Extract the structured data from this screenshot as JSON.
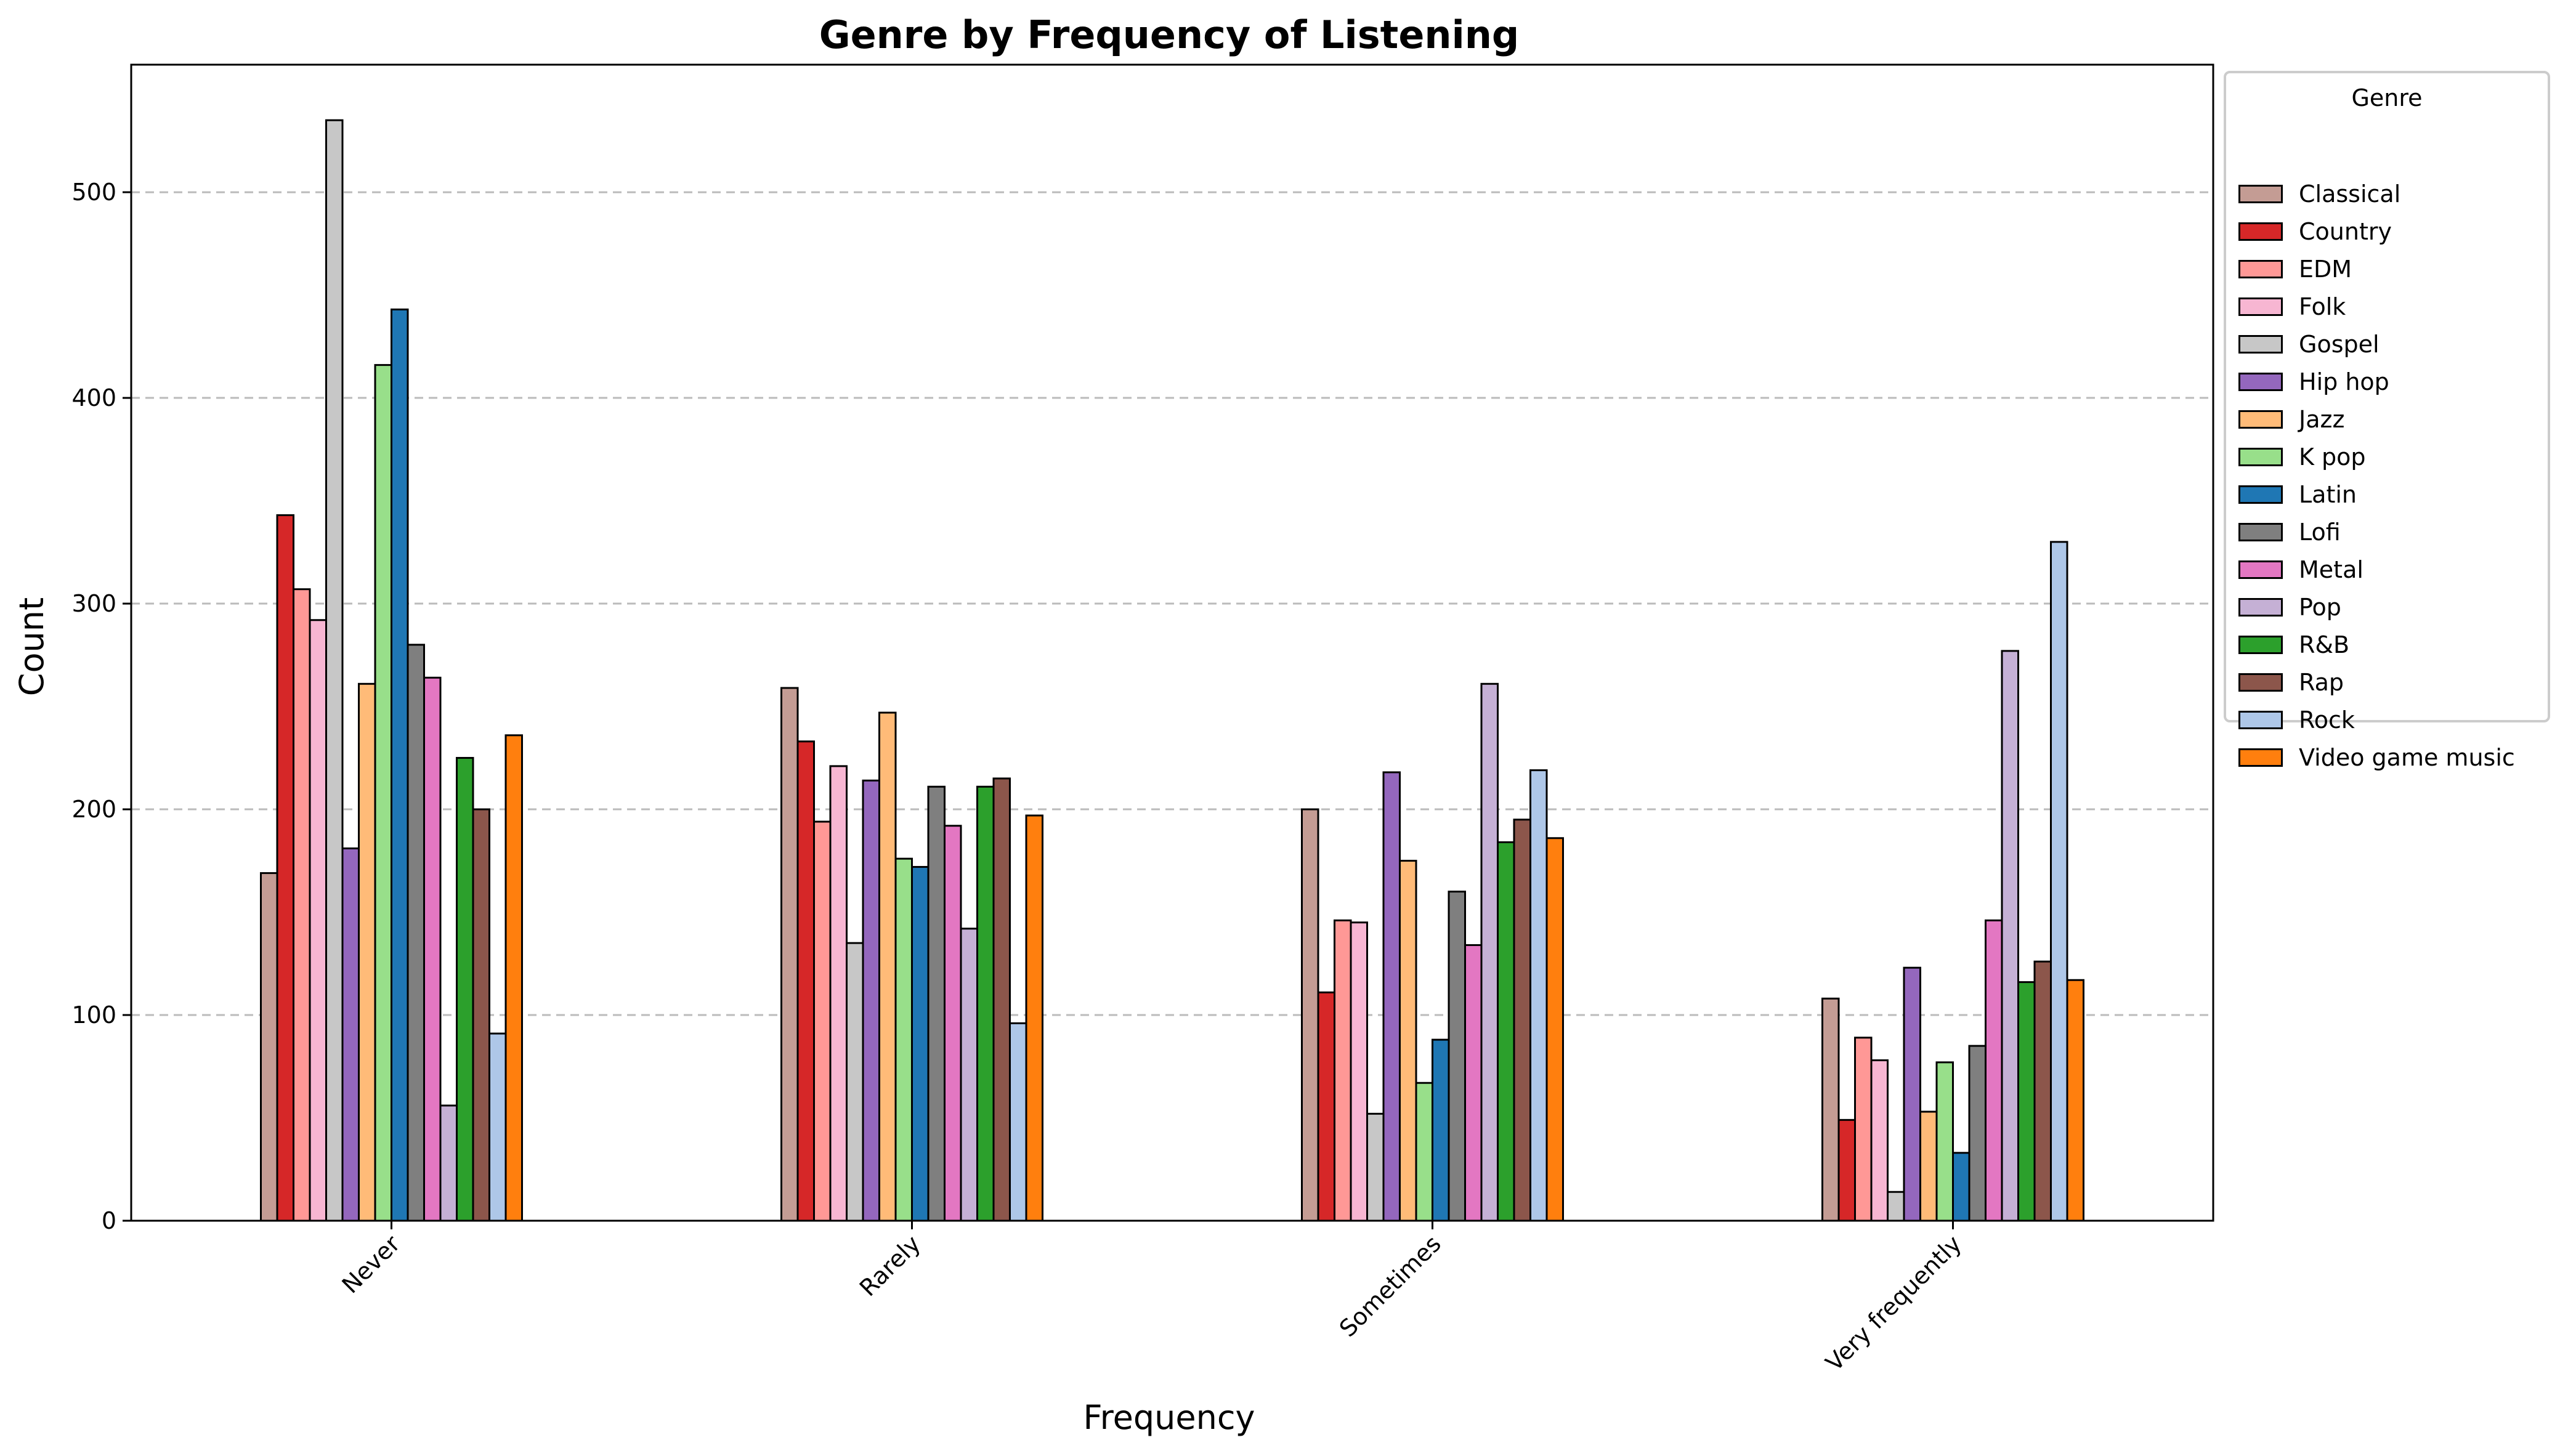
{
  "chart_data": {
    "type": "bar",
    "title": "Genre by Frequency of Listening",
    "xlabel": "Frequency",
    "ylabel": "Count",
    "ylim": [
      0,
      562
    ],
    "yticks": [
      0,
      100,
      200,
      300,
      400,
      500
    ],
    "grid": "y-dashed",
    "legend_title": "Genre",
    "legend_position": "outside-top-right",
    "categories": [
      "Never",
      "Rarely",
      "Sometimes",
      "Very frequently"
    ],
    "series": [
      {
        "name": "Classical",
        "color": "#c49c94",
        "values": [
          169,
          259,
          200,
          108
        ]
      },
      {
        "name": "Country",
        "color": "#d62728",
        "values": [
          343,
          233,
          111,
          49
        ]
      },
      {
        "name": "EDM",
        "color": "#ff9896",
        "values": [
          307,
          194,
          146,
          89
        ]
      },
      {
        "name": "Folk",
        "color": "#f7b6d2",
        "values": [
          292,
          221,
          145,
          78
        ]
      },
      {
        "name": "Gospel",
        "color": "#c7c7c7",
        "values": [
          535,
          135,
          52,
          14
        ]
      },
      {
        "name": "Hip hop",
        "color": "#9467bd",
        "values": [
          181,
          214,
          218,
          123
        ]
      },
      {
        "name": "Jazz",
        "color": "#ffbb78",
        "values": [
          261,
          247,
          175,
          53
        ]
      },
      {
        "name": "K pop",
        "color": "#98df8a",
        "values": [
          416,
          176,
          67,
          77
        ]
      },
      {
        "name": "Latin",
        "color": "#1f77b4",
        "values": [
          443,
          172,
          88,
          33
        ]
      },
      {
        "name": "Lofi",
        "color": "#7f7f7f",
        "values": [
          280,
          211,
          160,
          85
        ]
      },
      {
        "name": "Metal",
        "color": "#e377c2",
        "values": [
          264,
          192,
          134,
          146
        ]
      },
      {
        "name": "Pop",
        "color": "#c5b0d5",
        "values": [
          56,
          142,
          261,
          277
        ]
      },
      {
        "name": "R&B",
        "color": "#2ca02c",
        "values": [
          225,
          211,
          184,
          116
        ]
      },
      {
        "name": "Rap",
        "color": "#8c564b",
        "values": [
          200,
          215,
          195,
          126
        ]
      },
      {
        "name": "Rock",
        "color": "#aec7e8",
        "values": [
          91,
          96,
          219,
          330
        ]
      },
      {
        "name": "Video game music",
        "color": "#ff7f0e",
        "values": [
          236,
          197,
          186,
          117
        ]
      }
    ]
  }
}
